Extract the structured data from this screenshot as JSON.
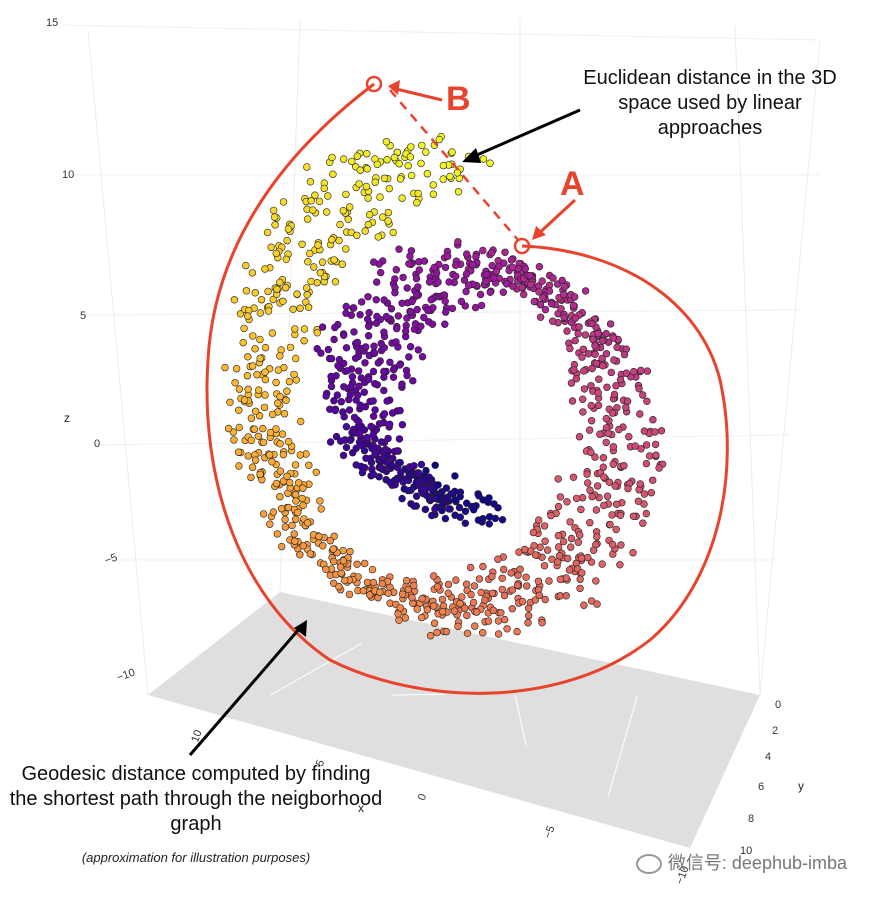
{
  "chart_data": {
    "type": "scatter",
    "title": "",
    "subtitle": "",
    "axes": {
      "x": {
        "label": "x",
        "ticks": [
          "10",
          "5",
          "0",
          "−5",
          "−10"
        ]
      },
      "y": {
        "label": "y",
        "ticks": [
          "0",
          "2",
          "4",
          "6",
          "8",
          "10"
        ]
      },
      "z": {
        "label": "z",
        "ticks": [
          "15",
          "10",
          "5",
          "0",
          "−5",
          "−10"
        ]
      }
    },
    "grid": true,
    "floor_shaded": true,
    "colormap": "plasma",
    "colors": [
      "#0d0887",
      "#5c01a6",
      "#9c179e",
      "#cc4778",
      "#ed7953",
      "#fdb42f",
      "#f0f921"
    ],
    "manifold": "swiss-roll",
    "points_description": "Swiss roll point cloud colored along the roll from dark blue (inner end) through purple and pink to orange and yellow (outer end)",
    "annotations": {
      "point_a_label": "A",
      "point_b_label": "B",
      "euclidean_note": "Euclidean distance in the 3D space used by linear approaches",
      "geodesic_note": "Geodesic distance computed by finding the shortest path through the neigborhood graph",
      "approx_note": "(approximation for illustration purposes)",
      "accent_color": "#e8432d"
    }
  },
  "watermark": {
    "text": "微信号: deephub-imba"
  }
}
